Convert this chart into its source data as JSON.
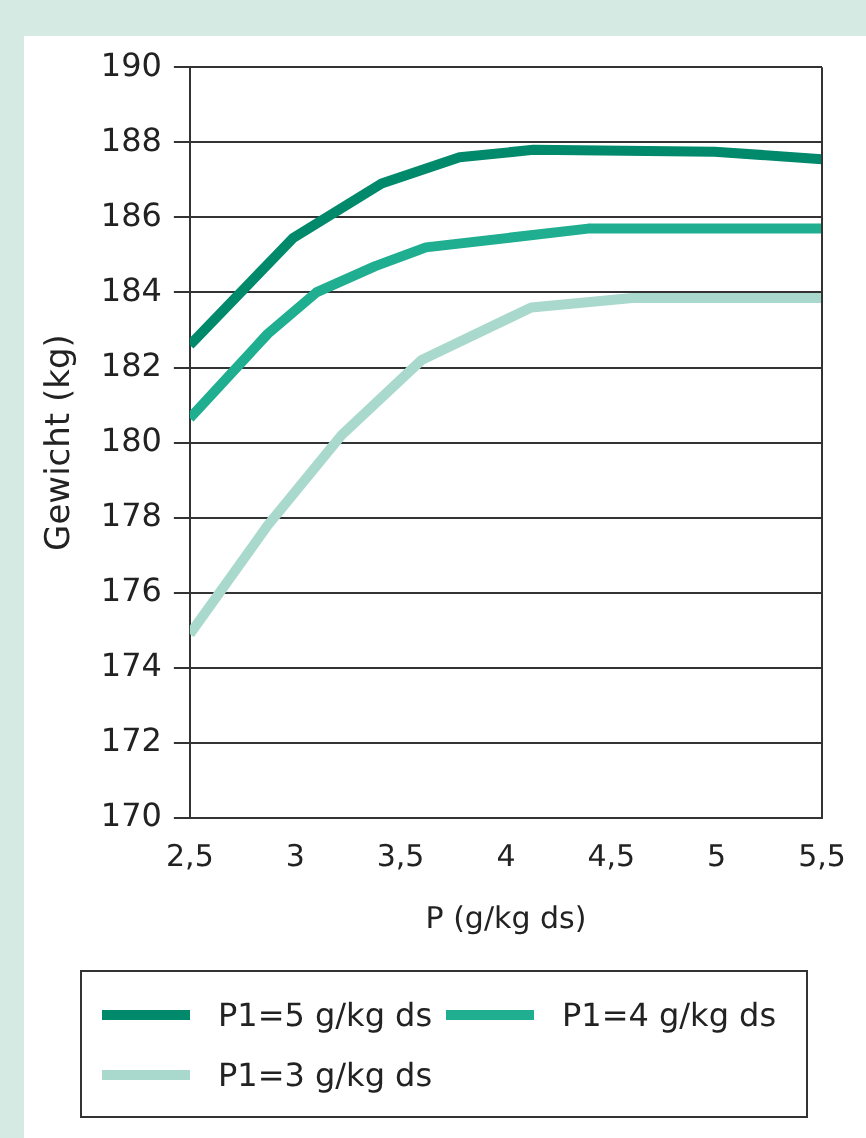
{
  "chart_data": {
    "type": "line",
    "xlabel": "P (g/kg ds)",
    "ylabel": "Gewicht (kg)",
    "xlim": [
      2.5,
      5.5
    ],
    "xticks": [
      {
        "value": 2.5,
        "label": "2,5"
      },
      3,
      {
        "value": 3.5,
        "label": "3,5"
      },
      4,
      {
        "value": 4.5,
        "label": "4,5"
      },
      5,
      {
        "value": 5.5,
        "label": "5,5"
      }
    ],
    "ylim": [
      170,
      190
    ],
    "yticks": [
      170,
      172,
      174,
      176,
      178,
      180,
      182,
      184,
      186,
      188,
      190
    ],
    "grid": "y",
    "legend": "bottom",
    "marker": "none",
    "line_style": "solid",
    "series": [
      {
        "name": "P1=5 g/kg ds",
        "color": "#00896a",
        "x": [
          2.5,
          2.99,
          3.41,
          3.78,
          4.13,
          4.99,
          5.5
        ],
        "values": [
          182.6,
          185.45,
          186.9,
          187.6,
          187.8,
          187.75,
          187.55
        ]
      },
      {
        "name": "P1=4 g/kg ds",
        "color": "#1fae8f",
        "x": [
          2.5,
          2.87,
          3.1,
          3.38,
          3.62,
          4.39,
          5.5
        ],
        "values": [
          180.65,
          182.9,
          184.0,
          184.7,
          185.2,
          185.7,
          185.7
        ]
      },
      {
        "name": "P1=3 g/kg ds",
        "color": "#a9d8cc",
        "x": [
          2.5,
          2.87,
          3.22,
          3.6,
          4.12,
          4.6,
          5.5
        ],
        "values": [
          174.9,
          177.8,
          180.2,
          182.2,
          183.6,
          183.85,
          183.85
        ]
      }
    ]
  }
}
